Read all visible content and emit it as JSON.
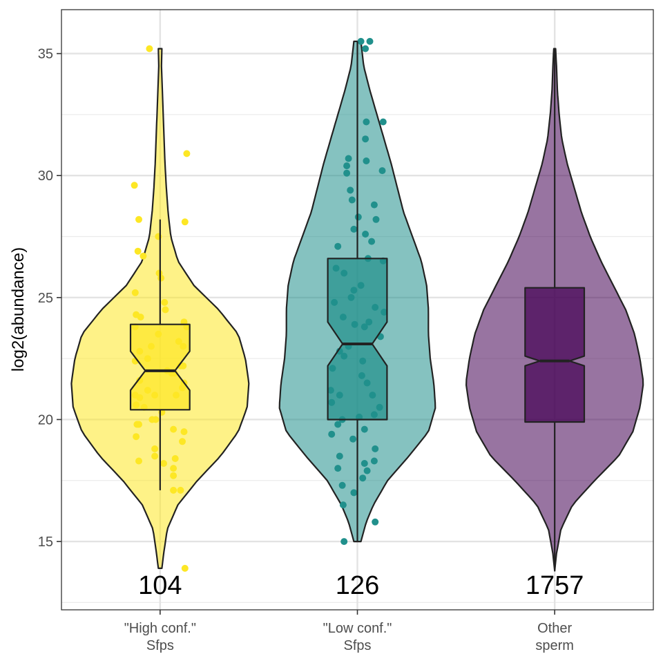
{
  "chart_data": {
    "type": "violin",
    "title": "",
    "xlabel": "",
    "ylabel": "log2(abundance)",
    "ylim": [
      12.2,
      36.8
    ],
    "yticks": [
      15,
      20,
      25,
      30,
      35
    ],
    "grid": true,
    "legend": "none",
    "groups": [
      {
        "category_lines": [
          "\"High conf.\"",
          "Sfps"
        ],
        "n_label": "104",
        "color": "#FDE725",
        "min": 13.9,
        "q1": 20.4,
        "median": 22.0,
        "q3": 23.9,
        "max": 35.2,
        "whisker_low": 17.1,
        "whisker_high": 28.2,
        "notch": [
          21.2,
          22.8
        ],
        "density_profile": [
          [
            13.9,
            0.02
          ],
          [
            14.5,
            0.04
          ],
          [
            15.5,
            0.08
          ],
          [
            16.5,
            0.2
          ],
          [
            17.5,
            0.42
          ],
          [
            18.5,
            0.68
          ],
          [
            19.5,
            0.88
          ],
          [
            20.5,
            0.98
          ],
          [
            21.5,
            1.0
          ],
          [
            22.5,
            0.96
          ],
          [
            23.5,
            0.88
          ],
          [
            24.5,
            0.66
          ],
          [
            25.5,
            0.38
          ],
          [
            26.5,
            0.2
          ],
          [
            27.5,
            0.12
          ],
          [
            28.5,
            0.09
          ],
          [
            29.5,
            0.07
          ],
          [
            30.5,
            0.055
          ],
          [
            31.5,
            0.045
          ],
          [
            32.5,
            0.035
          ],
          [
            33.5,
            0.025
          ],
          [
            34.5,
            0.015
          ],
          [
            35.2,
            0.02
          ]
        ],
        "points": [
          [
            35.2,
            -0.12
          ],
          [
            30.9,
            0.3
          ],
          [
            29.6,
            -0.29
          ],
          [
            28.2,
            -0.24
          ],
          [
            28.1,
            0.28
          ],
          [
            27.5,
            -0.02
          ],
          [
            26.9,
            -0.25
          ],
          [
            26.7,
            -0.19
          ],
          [
            26.0,
            -0.01
          ],
          [
            25.8,
            0.01
          ],
          [
            25.2,
            -0.28
          ],
          [
            24.5,
            0.06
          ],
          [
            24.3,
            -0.27
          ],
          [
            24.2,
            -0.22
          ],
          [
            24.0,
            0.27
          ],
          [
            23.8,
            0.3
          ],
          [
            23.8,
            -0.28
          ],
          [
            23.5,
            -0.02
          ],
          [
            23.2,
            0.21
          ],
          [
            23.0,
            0.26
          ],
          [
            22.8,
            -0.23
          ],
          [
            22.4,
            -0.28
          ],
          [
            22.2,
            0.23
          ],
          [
            22.2,
            0.26
          ],
          [
            21.9,
            0.13
          ],
          [
            21.9,
            0.16
          ],
          [
            21.6,
            -0.23
          ],
          [
            21.5,
            0.27
          ],
          [
            21.3,
            0.25
          ],
          [
            21.2,
            -0.14
          ],
          [
            21.0,
            -0.06
          ],
          [
            21.0,
            -0.28
          ],
          [
            20.9,
            -0.23
          ],
          [
            20.6,
            -0.27
          ],
          [
            20.5,
            -0.18
          ],
          [
            20.0,
            -0.09
          ],
          [
            20.0,
            -0.05
          ],
          [
            19.8,
            -0.26
          ],
          [
            19.8,
            -0.24
          ],
          [
            19.6,
            0.15
          ],
          [
            19.5,
            0.27
          ],
          [
            19.3,
            -0.27
          ],
          [
            19.1,
            0.25
          ],
          [
            18.8,
            -0.06
          ],
          [
            18.5,
            -0.06
          ],
          [
            18.4,
            0.17
          ],
          [
            18.3,
            -0.24
          ],
          [
            18.2,
            0.04
          ],
          [
            18.0,
            0.15
          ],
          [
            17.7,
            0.15
          ],
          [
            17.1,
            0.15
          ],
          [
            17.1,
            0.23
          ],
          [
            13.9,
            0.28
          ],
          [
            22.0,
            0.08
          ],
          [
            23.0,
            -0.1
          ],
          [
            24.8,
            0.05
          ],
          [
            21.0,
            0.18
          ],
          [
            20.3,
            0.02
          ],
          [
            22.5,
            -0.14
          ]
        ]
      },
      {
        "category_lines": [
          "\"Low conf.\"",
          "Sfps"
        ],
        "n_label": "126",
        "color": "#21908C",
        "min": 15.0,
        "q1": 20.0,
        "median": 23.1,
        "q3": 26.6,
        "max": 35.5,
        "whisker_low": 15.0,
        "whisker_high": 35.5,
        "notch": [
          22.2,
          24.0
        ],
        "density_profile": [
          [
            15.0,
            0.04
          ],
          [
            15.8,
            0.1
          ],
          [
            16.5,
            0.18
          ],
          [
            17.5,
            0.34
          ],
          [
            18.5,
            0.58
          ],
          [
            19.5,
            0.8
          ],
          [
            20.5,
            0.88
          ],
          [
            21.5,
            0.86
          ],
          [
            22.5,
            0.82
          ],
          [
            23.5,
            0.8
          ],
          [
            24.5,
            0.8
          ],
          [
            25.5,
            0.78
          ],
          [
            26.5,
            0.72
          ],
          [
            27.5,
            0.62
          ],
          [
            28.5,
            0.52
          ],
          [
            29.5,
            0.45
          ],
          [
            30.5,
            0.38
          ],
          [
            31.5,
            0.3
          ],
          [
            32.5,
            0.22
          ],
          [
            33.5,
            0.14
          ],
          [
            34.5,
            0.07
          ],
          [
            35.5,
            0.04
          ]
        ],
        "points": [
          [
            35.5,
            0.04
          ],
          [
            35.5,
            0.14
          ],
          [
            35.2,
            0.09
          ],
          [
            32.2,
            0.29
          ],
          [
            32.2,
            0.1
          ],
          [
            31.5,
            0.09
          ],
          [
            30.7,
            -0.1
          ],
          [
            30.6,
            0.1
          ],
          [
            30.4,
            -0.12
          ],
          [
            30.2,
            0.28
          ],
          [
            30.1,
            -0.12
          ],
          [
            29.4,
            -0.08
          ],
          [
            29.0,
            -0.06
          ],
          [
            28.8,
            0.19
          ],
          [
            28.3,
            0.01
          ],
          [
            28.2,
            0.21
          ],
          [
            27.8,
            -0.04
          ],
          [
            27.6,
            0.09
          ],
          [
            27.3,
            0.16
          ],
          [
            27.1,
            -0.22
          ],
          [
            26.6,
            0.12
          ],
          [
            26.5,
            0.29
          ],
          [
            26.2,
            -0.24
          ],
          [
            26.0,
            -0.15
          ],
          [
            25.5,
            0.04
          ],
          [
            25.3,
            -0.04
          ],
          [
            24.8,
            -0.26
          ],
          [
            24.6,
            0.2
          ],
          [
            24.4,
            0.3
          ],
          [
            24.2,
            -0.16
          ],
          [
            23.9,
            -0.03
          ],
          [
            23.8,
            0.08
          ],
          [
            23.4,
            0.26
          ],
          [
            22.8,
            -0.2
          ],
          [
            22.6,
            -0.15
          ],
          [
            22.1,
            -0.28
          ],
          [
            21.8,
            0.05
          ],
          [
            21.5,
            0.11
          ],
          [
            21.2,
            -0.3
          ],
          [
            21.0,
            -0.2
          ],
          [
            20.7,
            -0.29
          ],
          [
            20.5,
            0.25
          ],
          [
            20.2,
            0.19
          ],
          [
            20.1,
            0.02
          ],
          [
            20.0,
            -0.17
          ],
          [
            19.8,
            -0.22
          ],
          [
            19.6,
            0.08
          ],
          [
            19.4,
            -0.29
          ],
          [
            19.2,
            -0.05
          ],
          [
            18.8,
            0.2
          ],
          [
            18.5,
            -0.2
          ],
          [
            18.3,
            0.19
          ],
          [
            18.2,
            0.08
          ],
          [
            18.0,
            -0.22
          ],
          [
            17.9,
            0.11
          ],
          [
            17.6,
            0.06
          ],
          [
            17.3,
            -0.17
          ],
          [
            17.0,
            -0.04
          ],
          [
            16.5,
            -0.16
          ],
          [
            15.8,
            0.2
          ],
          [
            15.0,
            -0.15
          ],
          [
            22.4,
            0.06
          ],
          [
            25.0,
            -0.07
          ],
          [
            21.0,
            0.17
          ],
          [
            24.0,
            0.13
          ],
          [
            23.0,
            -0.1
          ]
        ]
      },
      {
        "category_lines": [
          "Other",
          "sperm"
        ],
        "n_label": "1757",
        "color": "#440154",
        "min": 13.8,
        "q1": 19.9,
        "median": 22.4,
        "q3": 25.4,
        "max": 35.2,
        "whisker_low": 13.8,
        "whisker_high": 35.2,
        "notch": [
          22.2,
          22.6
        ],
        "density_profile": [
          [
            13.8,
            0.0
          ],
          [
            14.5,
            0.02
          ],
          [
            15.5,
            0.07
          ],
          [
            16.5,
            0.2
          ],
          [
            17.5,
            0.45
          ],
          [
            18.5,
            0.72
          ],
          [
            19.5,
            0.88
          ],
          [
            20.5,
            0.96
          ],
          [
            21.5,
            1.0
          ],
          [
            22.5,
            0.96
          ],
          [
            23.5,
            0.9
          ],
          [
            24.5,
            0.8
          ],
          [
            25.5,
            0.66
          ],
          [
            26.5,
            0.52
          ],
          [
            27.5,
            0.4
          ],
          [
            28.5,
            0.3
          ],
          [
            29.5,
            0.22
          ],
          [
            30.5,
            0.14
          ],
          [
            31.5,
            0.08
          ],
          [
            32.5,
            0.05
          ],
          [
            33.5,
            0.03
          ],
          [
            34.5,
            0.02
          ],
          [
            35.2,
            0.01
          ]
        ],
        "points": []
      }
    ]
  }
}
